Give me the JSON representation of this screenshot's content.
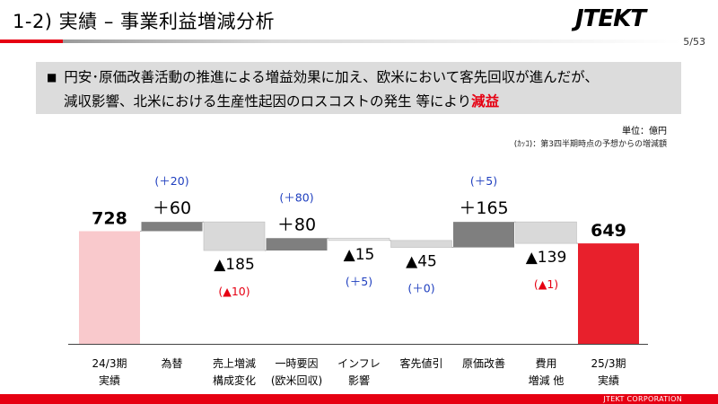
{
  "page": {
    "title": "1-2) 実績 – 事業利益増減分析",
    "logo": "JTEKT",
    "page_number": "5/53",
    "footer": "JTEKT  CORPORATION"
  },
  "summary": {
    "bullet": "■",
    "line1": "円安･原価改善活動の推進による増益効果に加え、欧米において客先回収が進んだが、",
    "line2_prefix": "減収影響、北米における生産性起因のロスコストの発生  等により",
    "line2_highlight": "減益"
  },
  "unit": {
    "label": "単位：億円",
    "note": "(ｶｯｺ)：第3四半期時点の予想からの増減額"
  },
  "colors": {
    "start_bar": "#f9c9cc",
    "end_bar": "#e8202c",
    "increase_bar": "#7f7f7f",
    "decrease_bar": "#d9d9d9",
    "inflation_bar": "#e8e8e8",
    "note_positive": "#1f3fbf",
    "note_negative": "#e60012",
    "accent": "#e60012"
  },
  "chart_data": {
    "type": "waterfall",
    "categories": [
      [
        "24/3期",
        "実績"
      ],
      [
        "為替"
      ],
      [
        "売上増減",
        "構成変化"
      ],
      [
        "一時要因",
        "(欧米回収)"
      ],
      [
        "インフレ",
        "影響"
      ],
      [
        "客先値引"
      ],
      [
        "原価改善"
      ],
      [
        "費用",
        "増減 他"
      ],
      [
        "25/3期",
        "実績"
      ]
    ],
    "values": [
      728,
      60,
      -185,
      80,
      -15,
      -45,
      165,
      -139,
      649
    ],
    "bar_roles": [
      "total",
      "increase",
      "decrease",
      "increase",
      "decrease",
      "decrease",
      "increase",
      "decrease",
      "total"
    ],
    "value_labels": [
      "728",
      "＋60",
      "▲185",
      "＋80",
      "▲15",
      "▲45",
      "＋165",
      "▲139",
      "649"
    ],
    "notes": [
      "",
      "(＋20)",
      "(▲10)",
      "(＋80)",
      "(＋5)",
      "(＋0)",
      "(＋5)",
      "(▲1)",
      ""
    ],
    "note_signs": [
      "",
      "positive",
      "negative",
      "positive",
      "positive",
      "positive",
      "positive",
      "negative",
      ""
    ],
    "ylim": [
      0,
      1000
    ]
  }
}
